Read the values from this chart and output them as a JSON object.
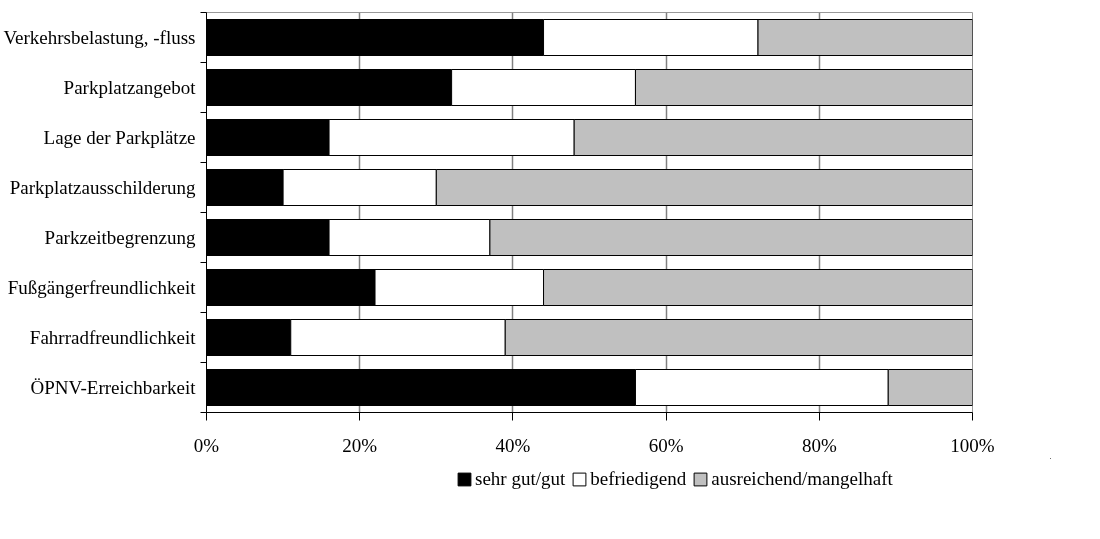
{
  "chart_data": {
    "type": "bar",
    "orientation": "horizontal",
    "stacked": true,
    "categories": [
      "Verkehrsbelastung, -fluss",
      "Parkplatzangebot",
      "Lage der Parkplätze",
      "Parkplatzausschilderung",
      "Parkzeitbegrenzung",
      "Fußgängerfreundlichkeit",
      "Fahrradfreundlichkeit",
      "ÖPNV-Erreichbarkeit"
    ],
    "series": [
      {
        "name": "sehr gut/gut",
        "color": "#000000",
        "values": [
          44,
          32,
          16,
          10,
          16,
          22,
          11,
          56
        ]
      },
      {
        "name": "befriedigend",
        "color": "#ffffff",
        "values": [
          28,
          24,
          32,
          20,
          21,
          22,
          28,
          33
        ]
      },
      {
        "name": "ausreichend/mangelhaft",
        "color": "#c0c0c0",
        "values": [
          28,
          44,
          52,
          70,
          63,
          56,
          61,
          11
        ]
      }
    ],
    "xlim": [
      0,
      100
    ],
    "xticks": [
      {
        "value": 0,
        "label": "0%"
      },
      {
        "value": 20,
        "label": "20%"
      },
      {
        "value": 40,
        "label": "40%"
      },
      {
        "value": 60,
        "label": "60%"
      },
      {
        "value": 80,
        "label": "80%"
      },
      {
        "value": 100,
        "label": "100%"
      }
    ],
    "grid": "x",
    "legend": "bottom"
  }
}
